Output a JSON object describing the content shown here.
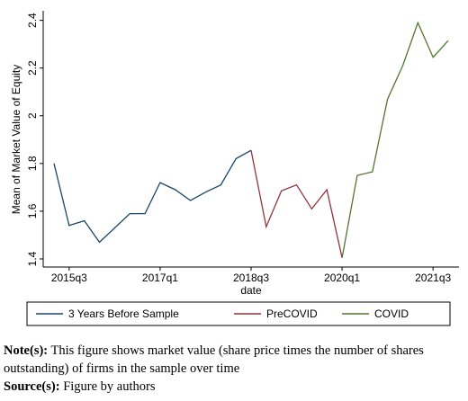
{
  "chart_data": {
    "type": "line",
    "x_label": "date",
    "y_label": "Mean of Market Value of Equity",
    "categories": [
      null,
      "2015q3",
      null,
      null,
      null,
      null,
      null,
      "2017q1",
      null,
      null,
      null,
      null,
      null,
      "2018q3",
      null,
      null,
      null,
      null,
      null,
      "2020q1",
      null,
      null,
      null,
      null,
      null,
      "2021q3",
      null
    ],
    "series": [
      {
        "name": "3 Years Before Sample",
        "color": "#1a476f",
        "values": [
          1.8,
          1.54,
          1.56,
          1.47,
          1.53,
          1.59,
          1.59,
          1.72,
          1.69,
          1.645,
          1.68,
          1.71,
          1.82,
          1.855,
          null,
          null,
          null,
          null,
          null,
          null,
          null,
          null,
          null,
          null,
          null,
          null,
          null
        ]
      },
      {
        "name": "PreCOVID",
        "color": "#90353b",
        "values": [
          null,
          null,
          null,
          null,
          null,
          null,
          null,
          null,
          null,
          null,
          null,
          null,
          null,
          1.855,
          1.535,
          1.685,
          1.71,
          1.61,
          1.69,
          1.405,
          null,
          null,
          null,
          null,
          null,
          null,
          null
        ]
      },
      {
        "name": "COVID",
        "color": "#55752f",
        "values": [
          null,
          null,
          null,
          null,
          null,
          null,
          null,
          null,
          null,
          null,
          null,
          null,
          null,
          null,
          null,
          null,
          null,
          null,
          null,
          1.405,
          1.75,
          1.765,
          2.07,
          2.21,
          2.39,
          2.245,
          2.315
        ]
      }
    ],
    "ylim": [
      1.366,
      2.44
    ],
    "yticks": [
      1.4,
      1.6,
      1.8,
      2,
      2.2,
      2.4
    ],
    "grid": false
  },
  "note": {
    "label": "Note(s):",
    "text": "This figure shows market value (share price times the number of shares outstanding) of firms in the sample over time"
  },
  "source": {
    "label": "Source(s):",
    "text": "Figure by authors"
  }
}
